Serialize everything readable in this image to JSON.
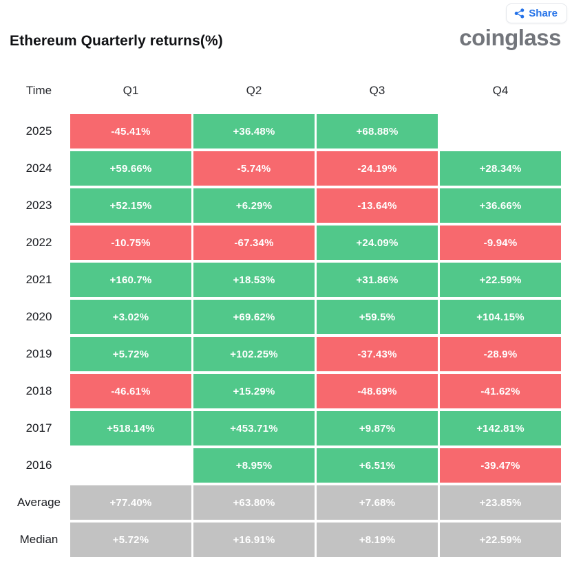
{
  "header": {
    "title": "Ethereum Quarterly returns(%)",
    "logo": "coinglass",
    "share_label": "Share"
  },
  "colors": {
    "green": "#51c88a",
    "red": "#f7696e",
    "gray": "#c2c2c2",
    "blue": "#2472e8"
  },
  "table": {
    "columns": [
      "Time",
      "Q1",
      "Q2",
      "Q3",
      "Q4"
    ],
    "rows": [
      {
        "label": "2025",
        "cells": [
          {
            "t": "-45.41%",
            "c": "red"
          },
          {
            "t": "+36.48%",
            "c": "green"
          },
          {
            "t": "+68.88%",
            "c": "green"
          },
          null
        ]
      },
      {
        "label": "2024",
        "cells": [
          {
            "t": "+59.66%",
            "c": "green"
          },
          {
            "t": "-5.74%",
            "c": "red"
          },
          {
            "t": "-24.19%",
            "c": "red"
          },
          {
            "t": "+28.34%",
            "c": "green"
          }
        ]
      },
      {
        "label": "2023",
        "cells": [
          {
            "t": "+52.15%",
            "c": "green"
          },
          {
            "t": "+6.29%",
            "c": "green"
          },
          {
            "t": "-13.64%",
            "c": "red"
          },
          {
            "t": "+36.66%",
            "c": "green"
          }
        ]
      },
      {
        "label": "2022",
        "cells": [
          {
            "t": "-10.75%",
            "c": "red"
          },
          {
            "t": "-67.34%",
            "c": "red"
          },
          {
            "t": "+24.09%",
            "c": "green"
          },
          {
            "t": "-9.94%",
            "c": "red"
          }
        ]
      },
      {
        "label": "2021",
        "cells": [
          {
            "t": "+160.7%",
            "c": "green"
          },
          {
            "t": "+18.53%",
            "c": "green"
          },
          {
            "t": "+31.86%",
            "c": "green"
          },
          {
            "t": "+22.59%",
            "c": "green"
          }
        ]
      },
      {
        "label": "2020",
        "cells": [
          {
            "t": "+3.02%",
            "c": "green"
          },
          {
            "t": "+69.62%",
            "c": "green"
          },
          {
            "t": "+59.5%",
            "c": "green"
          },
          {
            "t": "+104.15%",
            "c": "green"
          }
        ]
      },
      {
        "label": "2019",
        "cells": [
          {
            "t": "+5.72%",
            "c": "green"
          },
          {
            "t": "+102.25%",
            "c": "green"
          },
          {
            "t": "-37.43%",
            "c": "red"
          },
          {
            "t": "-28.9%",
            "c": "red"
          }
        ]
      },
      {
        "label": "2018",
        "cells": [
          {
            "t": "-46.61%",
            "c": "red"
          },
          {
            "t": "+15.29%",
            "c": "green"
          },
          {
            "t": "-48.69%",
            "c": "red"
          },
          {
            "t": "-41.62%",
            "c": "red"
          }
        ]
      },
      {
        "label": "2017",
        "cells": [
          {
            "t": "+518.14%",
            "c": "green"
          },
          {
            "t": "+453.71%",
            "c": "green"
          },
          {
            "t": "+9.87%",
            "c": "green"
          },
          {
            "t": "+142.81%",
            "c": "green"
          }
        ]
      },
      {
        "label": "2016",
        "cells": [
          null,
          {
            "t": "+8.95%",
            "c": "green"
          },
          {
            "t": "+6.51%",
            "c": "green"
          },
          {
            "t": "-39.47%",
            "c": "red"
          }
        ]
      },
      {
        "label": "Average",
        "cells": [
          {
            "t": "+77.40%",
            "c": "gray"
          },
          {
            "t": "+63.80%",
            "c": "gray"
          },
          {
            "t": "+7.68%",
            "c": "gray"
          },
          {
            "t": "+23.85%",
            "c": "gray"
          }
        ]
      },
      {
        "label": "Median",
        "cells": [
          {
            "t": "+5.72%",
            "c": "gray"
          },
          {
            "t": "+16.91%",
            "c": "gray"
          },
          {
            "t": "+8.19%",
            "c": "gray"
          },
          {
            "t": "+22.59%",
            "c": "gray"
          }
        ]
      }
    ]
  },
  "chart_data": {
    "type": "heatmap",
    "title": "Ethereum Quarterly returns(%)",
    "columns": [
      "Q1",
      "Q2",
      "Q3",
      "Q4"
    ],
    "rows": [
      "2025",
      "2024",
      "2023",
      "2022",
      "2021",
      "2020",
      "2019",
      "2018",
      "2017",
      "2016",
      "Average",
      "Median"
    ],
    "values": [
      [
        -45.41,
        36.48,
        68.88,
        null
      ],
      [
        59.66,
        -5.74,
        -24.19,
        28.34
      ],
      [
        52.15,
        6.29,
        -13.64,
        36.66
      ],
      [
        -10.75,
        -67.34,
        24.09,
        -9.94
      ],
      [
        160.7,
        18.53,
        31.86,
        22.59
      ],
      [
        3.02,
        69.62,
        59.5,
        104.15
      ],
      [
        5.72,
        102.25,
        -37.43,
        -28.9
      ],
      [
        -46.61,
        15.29,
        -48.69,
        -41.62
      ],
      [
        518.14,
        453.71,
        9.87,
        142.81
      ],
      [
        null,
        8.95,
        6.51,
        -39.47
      ],
      [
        77.4,
        63.8,
        7.68,
        23.85
      ],
      [
        5.72,
        16.91,
        8.19,
        22.59
      ]
    ],
    "color_coding": {
      "positive": "green",
      "negative": "red",
      "aggregate_rows": "gray"
    },
    "units": "%"
  }
}
